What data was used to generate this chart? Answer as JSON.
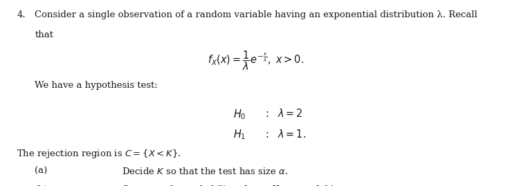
{
  "background_color": "#ffffff",
  "fig_width": 7.4,
  "fig_height": 2.69,
  "dpi": 100,
  "text_color": "#1a1a1a",
  "font_size_body": 9.5,
  "font_size_formula": 10.5,
  "font_size_hyp": 10.5,
  "line1_num": "4.",
  "line1_text": "Consider a single observation of a random variable having an exponential distribution λ. Recall",
  "line2_text": "that",
  "hyp_intro": "We have a hypothesis test:",
  "rejection": "The rejection region is $C = \\{X < K\\}$.",
  "part_a_label": "(a)",
  "part_a_text": "Decide $K$ so that the test has size $\\alpha$.",
  "part_b_label": "(b)",
  "part_b_text": "Compute the probability of type II error of this test."
}
